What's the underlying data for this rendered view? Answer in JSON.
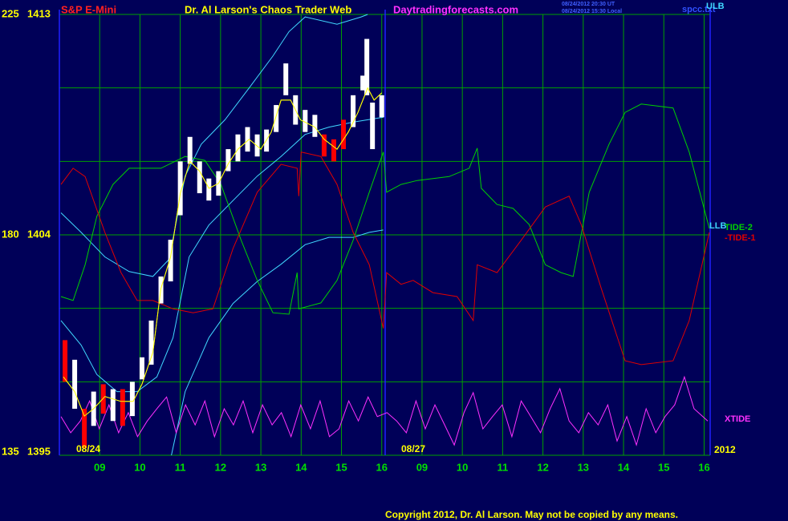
{
  "chart_data": {
    "type": "financial",
    "instrument": "S&P E-Mini",
    "title": "Dr. Al Larson's Chaos Trader Web",
    "site": "Daytradingforecasts.com",
    "timestamps": [
      "08/24/2012 20:30 UT",
      "08/24/2012 15:30 Local"
    ],
    "file": "spcc.txt",
    "date_labels": [
      "08/24",
      "08/27",
      "2012"
    ],
    "copyright": "Copyright 2012, Dr. Al Larson. May not be copied by any means.",
    "xlim": [
      0,
      16.15
    ],
    "xticks": [
      {
        "value": 1,
        "label": "09"
      },
      {
        "value": 2,
        "label": "10"
      },
      {
        "value": 3,
        "label": "11"
      },
      {
        "value": 4,
        "label": "12"
      },
      {
        "value": 5,
        "label": "13"
      },
      {
        "value": 6,
        "label": "14"
      },
      {
        "value": 7,
        "label": "15"
      },
      {
        "value": 8,
        "label": "16"
      },
      {
        "value": 9,
        "label": "09"
      },
      {
        "value": 10,
        "label": "10"
      },
      {
        "value": 11,
        "label": "11"
      },
      {
        "value": 12,
        "label": "12"
      },
      {
        "value": 13,
        "label": "13"
      },
      {
        "value": 14,
        "label": "14"
      },
      {
        "value": 15,
        "label": "15"
      },
      {
        "value": 16,
        "label": "16"
      }
    ],
    "ylim": [
      1395,
      1413
    ],
    "yticks": [
      1395,
      1404,
      1413
    ],
    "y2lim": [
      135,
      225
    ],
    "y2ticks": [
      135,
      180,
      225
    ],
    "ygrid": [
      1395,
      1398,
      1401,
      1404,
      1407,
      1410,
      1413
    ],
    "grid": true,
    "bars": {
      "x": [
        0.14,
        0.38,
        0.62,
        0.85,
        1.09,
        1.33,
        1.57,
        1.81,
        2.05,
        2.28,
        2.52,
        2.76,
        3.0,
        3.24,
        3.48,
        3.71,
        3.95,
        4.19,
        4.43,
        4.67,
        4.91,
        5.14,
        5.38,
        5.62,
        5.86,
        6.1,
        6.34,
        6.57,
        6.81,
        7.05,
        7.29,
        7.53,
        7.63,
        7.77,
        8.0
      ],
      "high": [
        1399.7,
        1398.9,
        1396.9,
        1397.6,
        1397.9,
        1397.7,
        1397.7,
        1398.0,
        1399.0,
        1400.5,
        1402.3,
        1403.8,
        1407.0,
        1408.0,
        1407.0,
        1406.3,
        1406.6,
        1407.5,
        1408.1,
        1408.4,
        1408.1,
        1408.3,
        1409.3,
        1411.0,
        1409.7,
        1409.1,
        1408.9,
        1408.1,
        1407.9,
        1408.7,
        1409.7,
        1410.5,
        1412.0,
        1409.4,
        1409.7
      ],
      "low": [
        1398.0,
        1396.9,
        1395.3,
        1396.2,
        1396.7,
        1396.4,
        1396.2,
        1396.6,
        1398.1,
        1398.7,
        1401.2,
        1402.1,
        1404.8,
        1406.9,
        1405.7,
        1405.4,
        1405.6,
        1406.6,
        1407.0,
        1407.4,
        1407.2,
        1407.4,
        1408.2,
        1409.7,
        1408.5,
        1408.2,
        1408.0,
        1407.2,
        1407.0,
        1407.5,
        1408.4,
        1409.9,
        1409.7,
        1407.5,
        1408.8
      ],
      "colors": [
        "#ff0000",
        "#ffffff",
        "#ff0000",
        "#ffffff",
        "#ff0000",
        "#ffffff",
        "#ff0000",
        "#ffffff",
        "#ffffff",
        "#ffffff",
        "#ffffff",
        "#ffffff",
        "#ffffff",
        "#ffffff",
        "#ffffff",
        "#ffffff",
        "#ffffff",
        "#ffffff",
        "#ffffff",
        "#ffffff",
        "#ffffff",
        "#ffffff",
        "#ffffff",
        "#ffffff",
        "#ffffff",
        "#ffffff",
        "#ffffff",
        "#ff0000",
        "#ff0000",
        "#ff0000",
        "#ffffff",
        "#ffffff",
        "#ffffff",
        "#ffffff",
        "#ffffff"
      ]
    },
    "series": [
      {
        "color": "#ffff00",
        "axis": "y",
        "x": [
          0.1,
          0.38,
          0.62,
          0.85,
          1.13,
          1.53,
          1.83,
          2.05,
          2.32,
          2.52,
          2.76,
          3.0,
          3.24,
          3.48,
          3.71,
          3.95,
          4.19,
          4.43,
          4.71,
          5.0,
          5.26,
          5.5,
          5.74,
          5.98,
          6.34,
          6.57,
          6.89,
          7.17,
          7.41,
          7.65,
          7.81,
          8.0
        ],
        "values": [
          1398.2,
          1397.6,
          1396.6,
          1396.9,
          1397.4,
          1397.2,
          1397.2,
          1397.9,
          1399.2,
          1401.8,
          1403.1,
          1405.7,
          1407.0,
          1406.6,
          1405.9,
          1406.1,
          1406.9,
          1407.5,
          1407.9,
          1407.5,
          1408.2,
          1409.5,
          1409.5,
          1408.7,
          1408.4,
          1407.9,
          1407.5,
          1408.2,
          1409.0,
          1410.0,
          1409.5,
          1409.8
        ]
      },
      {
        "name": "ULB",
        "color": "#40d8ff",
        "axis": "y",
        "x": [
          0.04,
          0.54,
          1.13,
          1.73,
          2.32,
          2.72,
          3.12,
          3.52,
          4.11,
          4.71,
          5.3,
          5.7,
          6.1,
          6.89,
          7.49,
          7.65
        ],
        "values": [
          1404.9,
          1404.1,
          1403.1,
          1402.5,
          1402.3,
          1403.0,
          1406.4,
          1407.7,
          1408.7,
          1410.0,
          1411.3,
          1412.3,
          1412.9,
          1412.6,
          1412.9,
          1413.0
        ]
      },
      {
        "color": "#40d8ff",
        "axis": "y",
        "x": [
          0.04,
          0.54,
          0.93,
          1.43,
          1.93,
          2.42,
          2.82,
          3.22,
          3.71,
          4.31,
          4.91,
          5.5,
          6.1,
          6.69,
          7.29,
          8.04
        ],
        "values": [
          1400.5,
          1399.5,
          1398.3,
          1397.6,
          1397.6,
          1398.2,
          1399.8,
          1403.1,
          1404.4,
          1405.4,
          1406.4,
          1407.2,
          1408.1,
          1408.4,
          1408.6,
          1408.8
        ]
      },
      {
        "name": "LLB",
        "color": "#40d8ff",
        "axis": "y",
        "x": [
          2.78,
          3.12,
          3.71,
          4.31,
          4.91,
          5.5,
          6.1,
          6.69,
          7.29,
          7.69,
          8.04
        ],
        "values": [
          1395.0,
          1397.6,
          1399.8,
          1401.2,
          1402.1,
          1402.8,
          1403.6,
          1403.9,
          1403.9,
          1404.1,
          1404.2
        ]
      },
      {
        "name": "TIDE-2",
        "color": "#00d000",
        "axis": "y2",
        "x": [
          0.04,
          0.34,
          0.64,
          0.93,
          1.33,
          1.73,
          2.52,
          3.12,
          3.61,
          4.01,
          4.51,
          4.91,
          5.3,
          5.7,
          5.9,
          5.94,
          6.49,
          6.89,
          7.29,
          7.69,
          8.04,
          8.12,
          8.48,
          8.88,
          9.67,
          10.17,
          10.37,
          10.47,
          10.86,
          11.26,
          11.66,
          12.06,
          12.45,
          12.75,
          13.15,
          13.64,
          14.04,
          14.44,
          15.23,
          15.63,
          16.13
        ],
        "values": [
          167.4,
          166.6,
          173.9,
          183.8,
          190.3,
          193.6,
          193.6,
          196.0,
          195.2,
          190.3,
          178.9,
          170.7,
          164.1,
          163.8,
          172.3,
          164.9,
          166.1,
          170.7,
          178.9,
          188.7,
          196.9,
          188.7,
          190.3,
          191.1,
          191.9,
          193.6,
          197.7,
          189.5,
          186.2,
          185.4,
          182.1,
          173.9,
          172.3,
          171.5,
          188.7,
          198.5,
          205.0,
          206.7,
          205.9,
          196.9,
          181.3
        ]
      },
      {
        "name": "-TIDE-1",
        "color": "#e00000",
        "axis": "y2",
        "x": [
          0.04,
          0.34,
          0.64,
          1.13,
          1.53,
          1.93,
          2.32,
          2.82,
          3.32,
          3.81,
          4.31,
          4.91,
          5.5,
          5.9,
          5.94,
          6.0,
          6.49,
          6.89,
          7.29,
          7.69,
          8.04,
          8.12,
          8.48,
          8.78,
          9.27,
          9.87,
          10.27,
          10.37,
          10.86,
          11.46,
          12.06,
          12.65,
          12.95,
          13.45,
          14.04,
          14.44,
          15.23,
          15.63,
          16.13
        ],
        "values": [
          190.3,
          193.6,
          191.9,
          180.5,
          172.3,
          166.6,
          166.6,
          164.9,
          164.1,
          164.9,
          177.2,
          188.7,
          194.4,
          193.6,
          187.9,
          196.9,
          196.0,
          190.3,
          180.5,
          173.9,
          160.9,
          172.3,
          169.9,
          170.7,
          168.2,
          167.4,
          162.5,
          173.9,
          172.3,
          178.9,
          185.7,
          187.9,
          182.1,
          169.0,
          154.3,
          153.5,
          154.3,
          162.5,
          180.5
        ]
      },
      {
        "name": "XTIDE",
        "color": "#ff30ff",
        "axis": "y2",
        "x": [
          0.04,
          0.28,
          0.52,
          0.75,
          0.99,
          1.23,
          1.47,
          1.71,
          1.94,
          2.18,
          2.42,
          2.66,
          2.9,
          3.13,
          3.37,
          3.61,
          3.85,
          4.09,
          4.32,
          4.56,
          4.8,
          5.04,
          5.28,
          5.51,
          5.75,
          5.99,
          6.23,
          6.47,
          6.7,
          6.94,
          7.18,
          7.42,
          7.66,
          7.89,
          8.13,
          8.37,
          8.61,
          8.85,
          9.08,
          9.32,
          9.56,
          9.8,
          10.04,
          10.27,
          10.51,
          10.75,
          10.99,
          11.23,
          11.46,
          11.7,
          11.94,
          12.18,
          12.42,
          12.65,
          12.89,
          13.13,
          13.37,
          13.61,
          13.84,
          14.08,
          14.32,
          14.56,
          14.8,
          15.03,
          15.27,
          15.51,
          15.75,
          16.09
        ],
        "values": [
          142.9,
          139.6,
          142.0,
          146.1,
          140.4,
          145.3,
          139.6,
          143.7,
          138.8,
          142.0,
          144.5,
          146.9,
          139.6,
          145.3,
          141.2,
          146.1,
          138.8,
          144.5,
          141.2,
          146.1,
          139.6,
          145.3,
          141.2,
          143.7,
          138.8,
          145.3,
          140.4,
          146.1,
          138.8,
          140.4,
          146.1,
          142.0,
          146.9,
          142.9,
          143.7,
          142.0,
          139.6,
          146.1,
          140.4,
          145.3,
          141.2,
          137.1,
          143.7,
          147.8,
          140.4,
          142.9,
          145.3,
          138.8,
          146.1,
          142.9,
          139.6,
          144.5,
          148.6,
          142.0,
          139.6,
          143.7,
          141.2,
          145.3,
          137.9,
          142.9,
          137.1,
          144.5,
          139.6,
          142.9,
          145.3,
          151.0,
          144.5,
          142.0
        ]
      }
    ]
  }
}
